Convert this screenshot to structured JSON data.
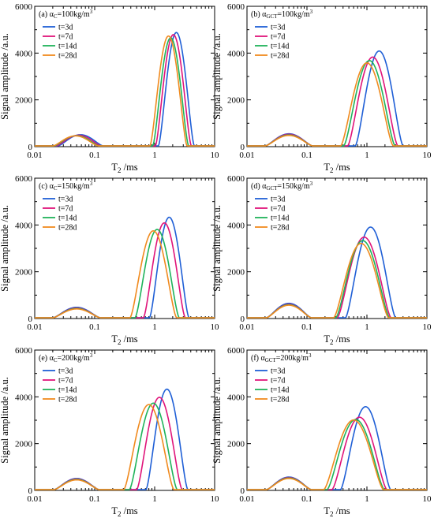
{
  "colors": {
    "3d": "#1f5fd6",
    "7d": "#e0147a",
    "14d": "#1fb35a",
    "28d": "#f08a1e",
    "axis": "#000000"
  },
  "axes": {
    "xlabel": "T",
    "xlabel_sub": "2",
    "xlabel_unit": " /ms",
    "ylabel": "Signal amplitude /a.u.",
    "xticks": [
      "0.01",
      "0.1",
      "1",
      "10"
    ],
    "yticks": [
      "0",
      "2000",
      "4000",
      "6000"
    ],
    "xscale": "log",
    "xlim": [
      0.01,
      10
    ],
    "ylim": [
      0,
      6000
    ]
  },
  "chart_data": [
    {
      "type": "line",
      "panel": "(a)",
      "title_prefix": "(a) ",
      "alpha": "α",
      "alpha_sub": "C",
      "title_value": "=100kg/m",
      "title_sup": "3",
      "series": [
        {
          "name": "t=3d",
          "color_key": "3d",
          "peaks": [
            {
              "x": 0.058,
              "y": 480,
              "w": 0.38
            },
            {
              "x": 2.3,
              "y": 4850,
              "w": 0.3
            }
          ]
        },
        {
          "name": "t=7d",
          "color_key": "7d",
          "peaks": [
            {
              "x": 0.054,
              "y": 460,
              "w": 0.38
            },
            {
              "x": 2.05,
              "y": 4760,
              "w": 0.3
            }
          ]
        },
        {
          "name": "t=14d",
          "color_key": "14d",
          "peaks": [
            {
              "x": 0.05,
              "y": 440,
              "w": 0.38
            },
            {
              "x": 1.85,
              "y": 4620,
              "w": 0.3
            }
          ]
        },
        {
          "name": "t=28d",
          "color_key": "28d",
          "peaks": [
            {
              "x": 0.048,
              "y": 430,
              "w": 0.38
            },
            {
              "x": 1.7,
              "y": 4700,
              "w": 0.31
            }
          ]
        }
      ]
    },
    {
      "type": "line",
      "panel": "(b)",
      "title_prefix": "(b) ",
      "alpha": "α",
      "alpha_sub": "GCT",
      "title_value": "=100kg/m",
      "title_sup": "3",
      "series": [
        {
          "name": "t=3d",
          "color_key": "3d",
          "peaks": [
            {
              "x": 0.05,
              "y": 520,
              "w": 0.4
            },
            {
              "x": 1.6,
              "y": 4060,
              "w": 0.4
            }
          ]
        },
        {
          "name": "t=7d",
          "color_key": "7d",
          "peaks": [
            {
              "x": 0.05,
              "y": 500,
              "w": 0.4
            },
            {
              "x": 1.25,
              "y": 3800,
              "w": 0.42
            }
          ]
        },
        {
          "name": "t=14d",
          "color_key": "14d",
          "peaks": [
            {
              "x": 0.05,
              "y": 470,
              "w": 0.4
            },
            {
              "x": 1.1,
              "y": 3650,
              "w": 0.43
            }
          ]
        },
        {
          "name": "t=28d",
          "color_key": "28d",
          "peaks": [
            {
              "x": 0.05,
              "y": 450,
              "w": 0.4
            },
            {
              "x": 1.0,
              "y": 3550,
              "w": 0.44
            }
          ]
        }
      ]
    },
    {
      "type": "line",
      "panel": "(c)",
      "title_prefix": "(c) ",
      "alpha": "α",
      "alpha_sub": "C",
      "title_value": "=150kg/m",
      "title_sup": "3",
      "series": [
        {
          "name": "t=3d",
          "color_key": "3d",
          "peaks": [
            {
              "x": 0.05,
              "y": 450,
              "w": 0.4
            },
            {
              "x": 1.75,
              "y": 4300,
              "w": 0.33
            }
          ]
        },
        {
          "name": "t=7d",
          "color_key": "7d",
          "peaks": [
            {
              "x": 0.05,
              "y": 420,
              "w": 0.4
            },
            {
              "x": 1.45,
              "y": 4060,
              "w": 0.35
            }
          ]
        },
        {
          "name": "t=14d",
          "color_key": "14d",
          "peaks": [
            {
              "x": 0.05,
              "y": 400,
              "w": 0.4
            },
            {
              "x": 1.1,
              "y": 3780,
              "w": 0.37
            }
          ]
        },
        {
          "name": "t=28d",
          "color_key": "28d",
          "peaks": [
            {
              "x": 0.05,
              "y": 380,
              "w": 0.4
            },
            {
              "x": 0.95,
              "y": 3720,
              "w": 0.39
            }
          ]
        }
      ]
    },
    {
      "type": "line",
      "panel": "(d)",
      "title_prefix": "(d) ",
      "alpha": "α",
      "alpha_sub": "GCT",
      "title_value": "=150kg/m",
      "title_sup": "3",
      "series": [
        {
          "name": "t=3d",
          "color_key": "3d",
          "peaks": [
            {
              "x": 0.05,
              "y": 620,
              "w": 0.38
            },
            {
              "x": 1.15,
              "y": 3880,
              "w": 0.42
            }
          ]
        },
        {
          "name": "t=7d",
          "color_key": "7d",
          "peaks": [
            {
              "x": 0.05,
              "y": 580,
              "w": 0.38
            },
            {
              "x": 0.9,
              "y": 3450,
              "w": 0.45
            }
          ]
        },
        {
          "name": "t=14d",
          "color_key": "14d",
          "peaks": [
            {
              "x": 0.05,
              "y": 560,
              "w": 0.38
            },
            {
              "x": 0.85,
              "y": 3300,
              "w": 0.45
            }
          ]
        },
        {
          "name": "t=28d",
          "color_key": "28d",
          "peaks": [
            {
              "x": 0.05,
              "y": 540,
              "w": 0.38
            },
            {
              "x": 0.8,
              "y": 3180,
              "w": 0.46
            }
          ]
        }
      ]
    },
    {
      "type": "line",
      "panel": "(e)",
      "title_prefix": "(e) ",
      "alpha": "α",
      "alpha_sub": "C",
      "title_value": "=200kg/m",
      "title_sup": "3",
      "series": [
        {
          "name": "t=3d",
          "color_key": "3d",
          "peaks": [
            {
              "x": 0.05,
              "y": 480,
              "w": 0.38
            },
            {
              "x": 1.6,
              "y": 4300,
              "w": 0.35
            }
          ]
        },
        {
          "name": "t=7d",
          "color_key": "7d",
          "peaks": [
            {
              "x": 0.05,
              "y": 460,
              "w": 0.38
            },
            {
              "x": 1.2,
              "y": 3950,
              "w": 0.38
            }
          ]
        },
        {
          "name": "t=14d",
          "color_key": "14d",
          "peaks": [
            {
              "x": 0.05,
              "y": 440,
              "w": 0.38
            },
            {
              "x": 0.95,
              "y": 3700,
              "w": 0.4
            }
          ]
        },
        {
          "name": "t=28d",
          "color_key": "28d",
          "peaks": [
            {
              "x": 0.05,
              "y": 420,
              "w": 0.38
            },
            {
              "x": 0.8,
              "y": 3640,
              "w": 0.42
            }
          ]
        }
      ]
    },
    {
      "type": "line",
      "panel": "(f)",
      "title_prefix": "(f) ",
      "alpha": "α",
      "alpha_sub": "GCT",
      "title_value": "=200kg/m",
      "title_sup": "3",
      "series": [
        {
          "name": "t=3d",
          "color_key": "3d",
          "peaks": [
            {
              "x": 0.05,
              "y": 540,
              "w": 0.38
            },
            {
              "x": 0.95,
              "y": 3550,
              "w": 0.42
            }
          ]
        },
        {
          "name": "t=7d",
          "color_key": "7d",
          "peaks": [
            {
              "x": 0.05,
              "y": 520,
              "w": 0.38
            },
            {
              "x": 0.75,
              "y": 3100,
              "w": 0.46
            }
          ]
        },
        {
          "name": "t=14d",
          "color_key": "14d",
          "peaks": [
            {
              "x": 0.05,
              "y": 500,
              "w": 0.38
            },
            {
              "x": 0.65,
              "y": 3000,
              "w": 0.48
            }
          ]
        },
        {
          "name": "t=28d",
          "color_key": "28d",
          "peaks": [
            {
              "x": 0.05,
              "y": 480,
              "w": 0.38
            },
            {
              "x": 0.6,
              "y": 2980,
              "w": 0.5
            }
          ]
        }
      ]
    }
  ]
}
